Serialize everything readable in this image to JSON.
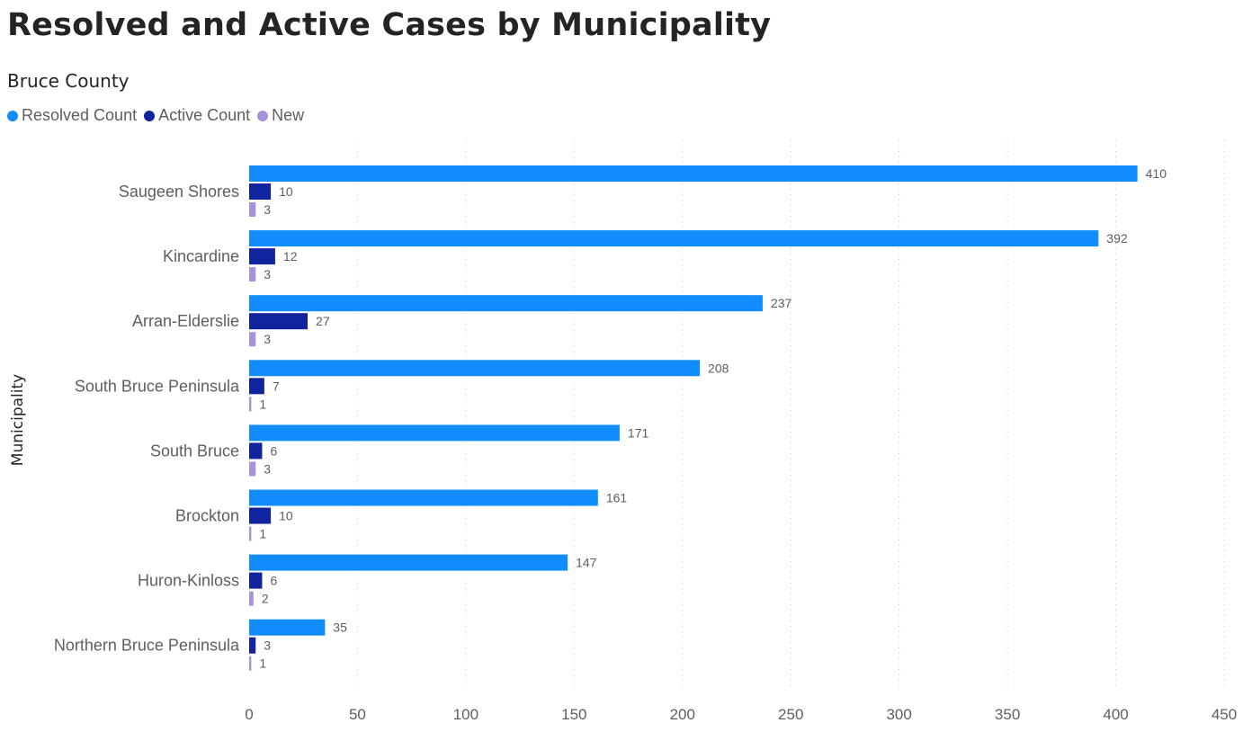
{
  "header": {
    "title": "Resolved and Active Cases by Municipality",
    "subtitle": "Bruce County"
  },
  "chart_data": {
    "type": "bar",
    "orientation": "horizontal",
    "title": "Resolved and Active Cases by Municipality",
    "subtitle": "Bruce County",
    "ylabel": "Municipality",
    "xlabel": "",
    "xlim": [
      0,
      450
    ],
    "x_ticks": [
      "0",
      "50",
      "100",
      "150",
      "200",
      "250",
      "300",
      "350",
      "400",
      "450"
    ],
    "grid": "vertical dotted",
    "legend_position": "top-left",
    "categories": [
      "Saugeen Shores",
      "Kincardine",
      "Arran-Elderslie",
      "South Bruce Peninsula",
      "South Bruce",
      "Brockton",
      "Huron-Kinloss",
      "Northern Bruce Peninsula"
    ],
    "series": [
      {
        "name": "Resolved Count",
        "color": "#118dff",
        "values": [
          410,
          392,
          237,
          208,
          171,
          161,
          147,
          35
        ]
      },
      {
        "name": "Active Count",
        "color": "#12239e",
        "values": [
          10,
          12,
          27,
          7,
          6,
          10,
          6,
          3
        ]
      },
      {
        "name": "New",
        "color": "#a793dc",
        "values": [
          3,
          3,
          3,
          1,
          3,
          1,
          2,
          1
        ]
      }
    ]
  }
}
